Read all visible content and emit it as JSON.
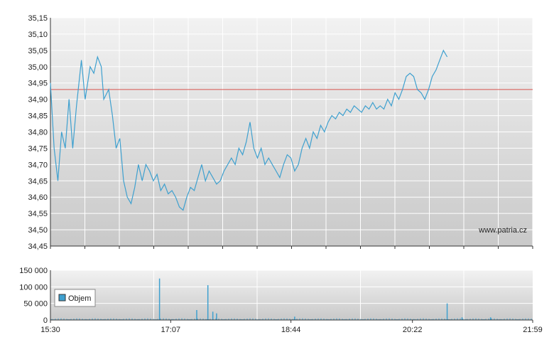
{
  "watermark": "www.patria.cz",
  "colors": {
    "line": "#3ea0cf",
    "reference": "#d9534f",
    "bar": "#3ea0cf",
    "grid": "#ffffff",
    "plot_top": "#f2f2f2",
    "plot_bottom": "#c9c9c9",
    "axis": "#333333"
  },
  "chart_data": [
    {
      "type": "line",
      "name": "price",
      "x_axis": {
        "ticks": [
          "15:30",
          "17:07",
          "18:44",
          "20:22",
          "21:59"
        ],
        "range": [
          "15:30",
          "21:59"
        ]
      },
      "y_axis": {
        "ticks": [
          "34,45",
          "34,50",
          "34,55",
          "34,60",
          "34,65",
          "34,70",
          "34,75",
          "34,80",
          "34,85",
          "34,90",
          "34,95",
          "35,00",
          "35,05",
          "35,10",
          "35,15"
        ],
        "ylim": [
          34.45,
          35.15
        ]
      },
      "grid": true,
      "reference_line": 34.93,
      "series": [
        {
          "values": [
            [
              "15:30",
              34.95
            ],
            [
              "15:33",
              34.75
            ],
            [
              "15:36",
              34.65
            ],
            [
              "15:39",
              34.8
            ],
            [
              "15:42",
              34.75
            ],
            [
              "15:45",
              34.9
            ],
            [
              "15:48",
              34.75
            ],
            [
              "15:51",
              34.88
            ],
            [
              "15:55",
              35.02
            ],
            [
              "15:58",
              34.9
            ],
            [
              "16:02",
              35.0
            ],
            [
              "16:05",
              34.98
            ],
            [
              "16:08",
              35.03
            ],
            [
              "16:11",
              35.0
            ],
            [
              "16:13",
              34.9
            ],
            [
              "16:17",
              34.93
            ],
            [
              "16:20",
              34.85
            ],
            [
              "16:23",
              34.75
            ],
            [
              "16:26",
              34.78
            ],
            [
              "16:29",
              34.65
            ],
            [
              "16:32",
              34.6
            ],
            [
              "16:35",
              34.58
            ],
            [
              "16:38",
              34.63
            ],
            [
              "16:41",
              34.7
            ],
            [
              "16:44",
              34.65
            ],
            [
              "16:47",
              34.7
            ],
            [
              "16:50",
              34.68
            ],
            [
              "16:53",
              34.65
            ],
            [
              "16:56",
              34.67
            ],
            [
              "16:59",
              34.62
            ],
            [
              "17:02",
              34.64
            ],
            [
              "17:05",
              34.61
            ],
            [
              "17:08",
              34.62
            ],
            [
              "17:11",
              34.6
            ],
            [
              "17:14",
              34.57
            ],
            [
              "17:17",
              34.56
            ],
            [
              "17:20",
              34.6
            ],
            [
              "17:23",
              34.63
            ],
            [
              "17:26",
              34.62
            ],
            [
              "17:29",
              34.66
            ],
            [
              "17:32",
              34.7
            ],
            [
              "17:35",
              34.65
            ],
            [
              "17:38",
              34.68
            ],
            [
              "17:41",
              34.66
            ],
            [
              "17:44",
              34.64
            ],
            [
              "17:47",
              34.65
            ],
            [
              "17:50",
              34.68
            ],
            [
              "17:53",
              34.7
            ],
            [
              "17:56",
              34.72
            ],
            [
              "17:59",
              34.7
            ],
            [
              "18:02",
              34.75
            ],
            [
              "18:05",
              34.73
            ],
            [
              "18:08",
              34.77
            ],
            [
              "18:11",
              34.83
            ],
            [
              "18:14",
              34.75
            ],
            [
              "18:17",
              34.72
            ],
            [
              "18:20",
              34.75
            ],
            [
              "18:23",
              34.7
            ],
            [
              "18:26",
              34.72
            ],
            [
              "18:29",
              34.7
            ],
            [
              "18:32",
              34.68
            ],
            [
              "18:35",
              34.66
            ],
            [
              "18:38",
              34.7
            ],
            [
              "18:41",
              34.73
            ],
            [
              "18:44",
              34.72
            ],
            [
              "18:47",
              34.68
            ],
            [
              "18:50",
              34.7
            ],
            [
              "18:53",
              34.75
            ],
            [
              "18:56",
              34.78
            ],
            [
              "18:59",
              34.75
            ],
            [
              "19:02",
              34.8
            ],
            [
              "19:05",
              34.78
            ],
            [
              "19:08",
              34.82
            ],
            [
              "19:11",
              34.8
            ],
            [
              "19:14",
              34.83
            ],
            [
              "19:17",
              34.85
            ],
            [
              "19:20",
              34.84
            ],
            [
              "19:23",
              34.86
            ],
            [
              "19:26",
              34.85
            ],
            [
              "19:29",
              34.87
            ],
            [
              "19:32",
              34.86
            ],
            [
              "19:35",
              34.88
            ],
            [
              "19:38",
              34.87
            ],
            [
              "19:41",
              34.86
            ],
            [
              "19:44",
              34.88
            ],
            [
              "19:47",
              34.87
            ],
            [
              "19:50",
              34.89
            ],
            [
              "19:53",
              34.87
            ],
            [
              "19:56",
              34.88
            ],
            [
              "19:59",
              34.87
            ],
            [
              "20:02",
              34.9
            ],
            [
              "20:05",
              34.88
            ],
            [
              "20:08",
              34.92
            ],
            [
              "20:11",
              34.9
            ],
            [
              "20:14",
              34.93
            ],
            [
              "20:17",
              34.97
            ],
            [
              "20:20",
              34.98
            ],
            [
              "20:23",
              34.97
            ],
            [
              "20:26",
              34.93
            ],
            [
              "20:29",
              34.92
            ],
            [
              "20:32",
              34.9
            ],
            [
              "20:35",
              34.93
            ],
            [
              "20:38",
              34.97
            ],
            [
              "20:41",
              34.99
            ],
            [
              "20:44",
              35.02
            ],
            [
              "20:47",
              35.05
            ],
            [
              "20:50",
              35.03
            ]
          ]
        }
      ]
    },
    {
      "type": "bar",
      "name": "volume",
      "legend": {
        "label": "Objem",
        "placement": "left"
      },
      "x_axis": {
        "ticks": [
          "15:30",
          "17:07",
          "18:44",
          "20:22",
          "21:59"
        ],
        "range": [
          "15:30",
          "21:59"
        ]
      },
      "y_axis": {
        "ticks": [
          "0",
          "50 000",
          "100 000",
          "150 000"
        ],
        "ylim": [
          0,
          150000
        ]
      },
      "grid": true,
      "spikes": [
        [
          "16:58",
          125000
        ],
        [
          "17:28",
          30000
        ],
        [
          "17:37",
          105000
        ],
        [
          "17:41",
          25000
        ],
        [
          "17:44",
          20000
        ],
        [
          "18:47",
          10000
        ],
        [
          "20:50",
          50000
        ],
        [
          "21:02",
          8000
        ],
        [
          "21:25",
          8000
        ]
      ],
      "baseline": 5000
    }
  ]
}
